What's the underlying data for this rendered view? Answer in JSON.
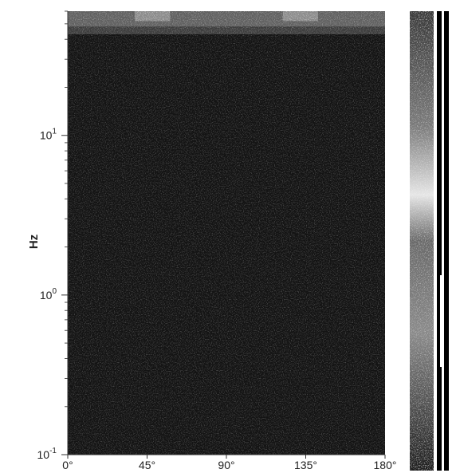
{
  "chart_data": {
    "type": "heatmap",
    "title": "",
    "xlabel": "",
    "ylabel": "Hz",
    "x_scale": "linear",
    "y_scale": "log",
    "xlim": [
      0,
      180
    ],
    "ylim": [
      0.1,
      60
    ],
    "x_ticks": [
      {
        "value": 0,
        "label": "0°"
      },
      {
        "value": 45,
        "label": "45°"
      },
      {
        "value": 90,
        "label": "90°"
      },
      {
        "value": 135,
        "label": "135°"
      },
      {
        "value": 180,
        "label": "180°"
      }
    ],
    "y_ticks": [
      {
        "value": 0.1,
        "base": "10",
        "exp": "-1"
      },
      {
        "value": 1,
        "base": "10",
        "exp": "0"
      },
      {
        "value": 10,
        "base": "10",
        "exp": "1"
      }
    ],
    "grid": false,
    "colormap": "grayscale",
    "background_level": 0.08,
    "bands": [
      {
        "y_from": 48,
        "y_to": 60,
        "x_from": 0,
        "x_to": 180,
        "level": 0.55
      },
      {
        "y_from": 43,
        "y_to": 48,
        "x_from": 0,
        "x_to": 180,
        "level": 0.3
      },
      {
        "y_from": 52,
        "y_to": 60,
        "x_from": 38,
        "x_to": 58,
        "level": 0.85
      },
      {
        "y_from": 52,
        "y_to": 60,
        "x_from": 122,
        "x_to": 142,
        "level": 0.85
      }
    ],
    "colorbar": {
      "present": true
    }
  }
}
